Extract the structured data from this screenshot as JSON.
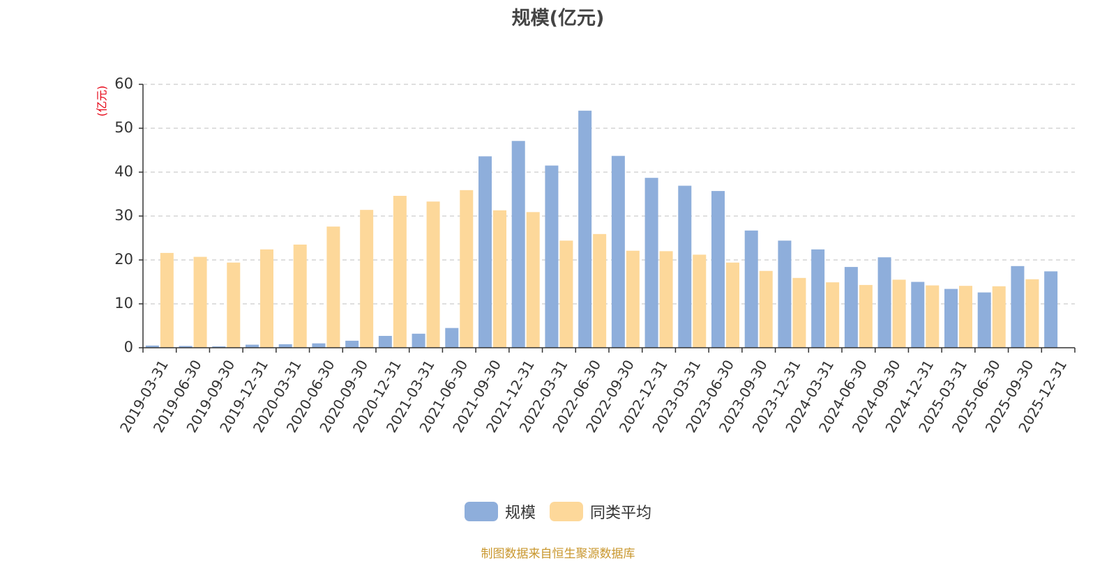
{
  "chart_data": {
    "type": "bar",
    "title": "规模(亿元)",
    "ylabel": "(亿元)",
    "ylim": [
      0,
      60
    ],
    "yticks": [
      0,
      10,
      20,
      30,
      40,
      50,
      60
    ],
    "grid": true,
    "legend_position": "bottom-center",
    "categories": [
      "2019-03-31",
      "2019-06-30",
      "2019-09-30",
      "2019-12-31",
      "2020-03-31",
      "2020-06-30",
      "2020-09-30",
      "2020-12-31",
      "2021-03-31",
      "2021-06-30",
      "2021-09-30",
      "2021-12-31",
      "2022-03-31",
      "2022-06-30",
      "2022-09-30",
      "2022-12-31",
      "2023-03-31",
      "2023-06-30",
      "2023-09-30",
      "2023-12-31",
      "2024-03-31",
      "2024-06-30",
      "2024-09-30",
      "2024-12-31",
      "2025-03-31",
      "2025-06-30",
      "2025-09-30",
      "2025-12-31"
    ],
    "series": [
      {
        "name": "规模",
        "color": "#8eaedb",
        "values": [
          0.5,
          0.4,
          0.3,
          0.7,
          0.8,
          1.0,
          1.6,
          2.7,
          3.2,
          4.5,
          43.6,
          47.1,
          41.5,
          54.0,
          43.7,
          38.7,
          36.9,
          35.7,
          26.7,
          24.4,
          22.4,
          18.4,
          20.6,
          15.0,
          13.4,
          12.6,
          18.6,
          17.4
        ]
      },
      {
        "name": "同类平均",
        "color": "#fdd89a",
        "values": [
          21.6,
          20.7,
          19.4,
          22.4,
          23.5,
          27.6,
          31.4,
          34.6,
          33.3,
          35.9,
          31.3,
          30.9,
          24.4,
          25.9,
          22.1,
          22.0,
          21.2,
          19.4,
          17.5,
          15.9,
          14.9,
          14.3,
          15.5,
          14.2,
          14.1,
          14.0,
          15.6,
          null
        ]
      }
    ]
  },
  "footer": {
    "source": "制图数据来自恒生聚源数据库"
  },
  "colors": {
    "axis": "#333333",
    "grid": "#cccccc",
    "ylabel": "#e60012",
    "source": "#c9972e"
  }
}
